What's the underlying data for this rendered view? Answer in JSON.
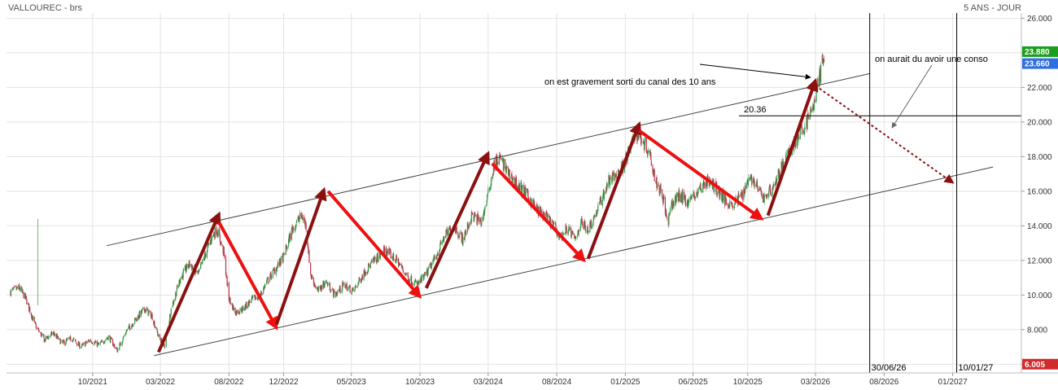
{
  "header": {
    "title": "VALLOUREC - brs",
    "period": "5 ANS - JOUR"
  },
  "chart_data": {
    "type": "candlestick",
    "x_ticks": [
      "10/2021",
      "03/2022",
      "08/2022",
      "12/2022",
      "05/2023",
      "10/2023",
      "03/2024",
      "08/2024",
      "01/2025",
      "06/2025",
      "10/2025",
      "03/2026",
      "08/2026",
      "01/2027"
    ],
    "y_ticks": [
      "6.000",
      "8.000",
      "10.000",
      "12.000",
      "14.000",
      "16.000",
      "18.000",
      "20.000",
      "22.000",
      "24.000",
      "26.000"
    ],
    "ylim": [
      5.5,
      26.3
    ],
    "price_path": [
      [
        "2021-04-01",
        10.2
      ],
      [
        "2021-04-20",
        10.4
      ],
      [
        "2021-05-05",
        9.8
      ],
      [
        "2021-05-25",
        8.3
      ],
      [
        "2021-06-15",
        7.4
      ],
      [
        "2021-07-05",
        7.8
      ],
      [
        "2021-07-25",
        7.2
      ],
      [
        "2021-08-15",
        7.5
      ],
      [
        "2021-09-05",
        7.0
      ],
      [
        "2021-09-25",
        7.4
      ],
      [
        "2021-10-15",
        7.1
      ],
      [
        "2021-11-05",
        7.6
      ],
      [
        "2021-11-25",
        6.8
      ],
      [
        "2021-12-15",
        7.9
      ],
      [
        "2022-01-05",
        8.6
      ],
      [
        "2022-01-25",
        9.2
      ],
      [
        "2022-02-10",
        8.8
      ],
      [
        "2022-02-25",
        7.6
      ],
      [
        "2022-03-10",
        7.0
      ],
      [
        "2022-03-25",
        9.2
      ],
      [
        "2022-04-15",
        11.0
      ],
      [
        "2022-05-05",
        11.8
      ],
      [
        "2022-05-25",
        11.2
      ],
      [
        "2022-06-10",
        12.4
      ],
      [
        "2022-06-25",
        13.4
      ],
      [
        "2022-07-05",
        13.8
      ],
      [
        "2022-07-20",
        12.5
      ],
      [
        "2022-08-01",
        9.8
      ],
      [
        "2022-08-15",
        9.0
      ],
      [
        "2022-09-01",
        9.2
      ],
      [
        "2022-09-20",
        9.7
      ],
      [
        "2022-10-10",
        10.0
      ],
      [
        "2022-10-25",
        10.8
      ],
      [
        "2022-11-10",
        11.4
      ],
      [
        "2022-12-01",
        12.2
      ],
      [
        "2022-12-20",
        13.8
      ],
      [
        "2023-01-10",
        14.6
      ],
      [
        "2023-01-20",
        14.0
      ],
      [
        "2023-01-30",
        11.2
      ],
      [
        "2023-02-15",
        10.2
      ],
      [
        "2023-03-05",
        10.8
      ],
      [
        "2023-03-25",
        10.0
      ],
      [
        "2023-04-15",
        10.6
      ],
      [
        "2023-05-05",
        10.2
      ],
      [
        "2023-06-01",
        11.4
      ],
      [
        "2023-06-25",
        12.1
      ],
      [
        "2023-07-15",
        12.6
      ],
      [
        "2023-08-10",
        12.0
      ],
      [
        "2023-09-05",
        11.0
      ],
      [
        "2023-09-25",
        10.6
      ],
      [
        "2023-10-15",
        11.2
      ],
      [
        "2023-11-05",
        12.2
      ],
      [
        "2023-11-25",
        13.4
      ],
      [
        "2023-12-15",
        14.0
      ],
      [
        "2024-01-05",
        13.2
      ],
      [
        "2024-01-25",
        14.6
      ],
      [
        "2024-02-15",
        14.2
      ],
      [
        "2024-03-01",
        15.8
      ],
      [
        "2024-03-15",
        17.6
      ],
      [
        "2024-03-28",
        17.9
      ],
      [
        "2024-04-15",
        17.0
      ],
      [
        "2024-05-05",
        16.4
      ],
      [
        "2024-05-25",
        15.8
      ],
      [
        "2024-06-15",
        15.0
      ],
      [
        "2024-07-05",
        14.6
      ],
      [
        "2024-07-25",
        14.0
      ],
      [
        "2024-08-10",
        13.3
      ],
      [
        "2024-08-25",
        13.9
      ],
      [
        "2024-09-10",
        13.2
      ],
      [
        "2024-09-25",
        14.2
      ],
      [
        "2024-10-10",
        13.8
      ],
      [
        "2024-10-25",
        14.6
      ],
      [
        "2024-11-10",
        15.6
      ],
      [
        "2024-11-25",
        16.6
      ],
      [
        "2024-12-10",
        16.9
      ],
      [
        "2024-12-25",
        17.4
      ],
      [
        "2025-01-10",
        18.3
      ],
      [
        "2025-01-25",
        19.4
      ],
      [
        "2025-02-10",
        18.9
      ],
      [
        "2025-02-25",
        18.2
      ],
      [
        "2025-03-10",
        16.6
      ],
      [
        "2025-03-25",
        15.8
      ],
      [
        "2025-04-05",
        14.1
      ],
      [
        "2025-04-15",
        15.2
      ],
      [
        "2025-05-01",
        15.8
      ],
      [
        "2025-05-20",
        15.4
      ],
      [
        "2025-06-10",
        15.9
      ],
      [
        "2025-06-30",
        16.6
      ],
      [
        "2025-07-20",
        16.3
      ],
      [
        "2025-08-10",
        15.5
      ],
      [
        "2025-08-30",
        15.2
      ],
      [
        "2025-09-20",
        15.9
      ],
      [
        "2025-10-05",
        16.9
      ],
      [
        "2025-10-20",
        16.3
      ],
      [
        "2025-11-05",
        15.6
      ],
      [
        "2025-11-25",
        16.2
      ],
      [
        "2025-12-15",
        17.3
      ],
      [
        "2026-01-05",
        18.4
      ],
      [
        "2026-01-25",
        19.3
      ],
      [
        "2026-02-10",
        20.0
      ],
      [
        "2026-02-25",
        21.0
      ],
      [
        "2026-03-10",
        22.6
      ],
      [
        "2026-03-20",
        23.9
      ]
    ],
    "last_price": "23.880",
    "price_tags": [
      {
        "label": "23.880",
        "value": 23.88,
        "color": "#1e9e1e"
      },
      {
        "label": "23.660",
        "value": 23.66,
        "color": "#2f6fe0"
      },
      {
        "label": "6.005",
        "value": 6.005,
        "color": "#d22b2b"
      }
    ],
    "channel_lines": [
      {
        "from": [
          "2021-11-01",
          12.85
        ],
        "to": [
          "2026-06-30",
          22.8
        ]
      },
      {
        "from": [
          "2022-02-15",
          6.5
        ],
        "to": [
          "2027-04-01",
          17.4
        ]
      }
    ],
    "trend_arrows": [
      {
        "direction": "up",
        "from": [
          "2022-02-25",
          6.7
        ],
        "to": [
          "2022-07-10",
          14.7
        ],
        "color": "#8b1010"
      },
      {
        "direction": "down",
        "from": [
          "2022-07-10",
          14.2
        ],
        "to": [
          "2022-11-15",
          8.1
        ],
        "color": "#ee1010"
      },
      {
        "direction": "up",
        "from": [
          "2022-11-15",
          8.3
        ],
        "to": [
          "2023-03-01",
          16.1
        ],
        "color": "#8b1010"
      },
      {
        "direction": "down",
        "from": [
          "2023-03-10",
          16.0
        ],
        "to": [
          "2023-10-01",
          9.9
        ],
        "color": "#ee1010"
      },
      {
        "direction": "up",
        "from": [
          "2023-10-15",
          10.4
        ],
        "to": [
          "2024-03-01",
          18.2
        ],
        "color": "#8b1010"
      },
      {
        "direction": "down",
        "from": [
          "2024-03-10",
          17.6
        ],
        "to": [
          "2024-10-01",
          12.0
        ],
        "color": "#ee1010"
      },
      {
        "direction": "up",
        "from": [
          "2024-10-10",
          12.1
        ],
        "to": [
          "2025-02-01",
          19.9
        ],
        "color": "#8b1010"
      },
      {
        "direction": "down",
        "from": [
          "2025-02-01",
          19.5
        ],
        "to": [
          "2025-11-01",
          14.4
        ],
        "color": "#ee1010"
      },
      {
        "direction": "up",
        "from": [
          "2025-11-15",
          14.6
        ],
        "to": [
          "2026-03-01",
          22.4
        ],
        "color": "#8b1010"
      }
    ],
    "projection": {
      "from": [
        "2026-03-01",
        22.1
      ],
      "to": [
        "2027-01-01",
        16.5
      ],
      "color": "#8b1010",
      "style": "dotted"
    },
    "horizontal_level": {
      "value": 20.36,
      "label": "20.36"
    },
    "vertical_markers": [
      {
        "date": "2026-06-30",
        "label": "30/06/26"
      },
      {
        "date": "2027-01-10",
        "label": "10/01/27"
      }
    ],
    "annotations": [
      {
        "text": "on est gravement sorti du canal des 10 ans"
      },
      {
        "text": "on aurait du avoir une conso"
      }
    ],
    "colors": {
      "up": "#2e9a45",
      "down": "#c0304a",
      "grid": "#e3e3e3"
    }
  }
}
